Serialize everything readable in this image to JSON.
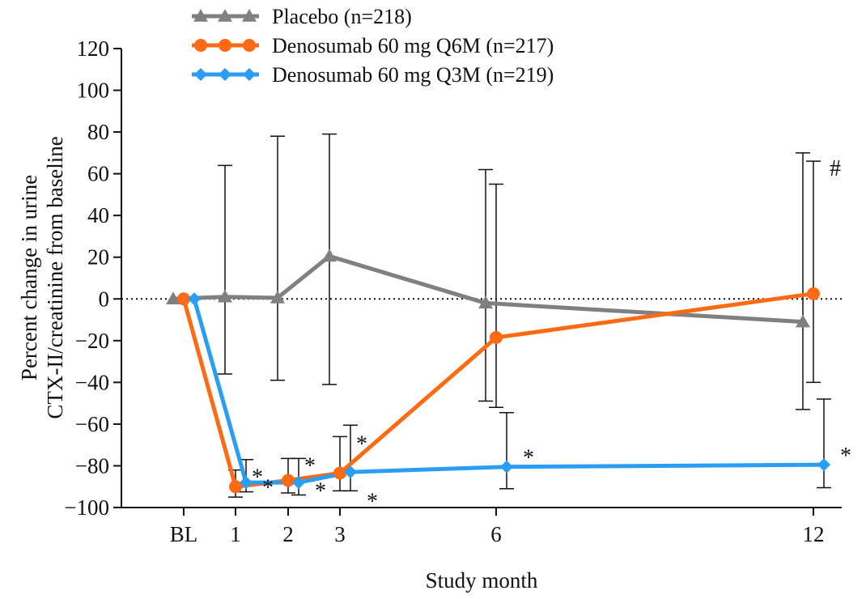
{
  "chart_data": {
    "type": "line",
    "title": "",
    "xlabel": "Study month",
    "ylabel_lines": [
      "Percent change in urine",
      "CTX-II/creatinine from baseline"
    ],
    "x_ticks": [
      {
        "value": 0,
        "label": "BL"
      },
      {
        "value": 1,
        "label": "1"
      },
      {
        "value": 2,
        "label": "2"
      },
      {
        "value": 3,
        "label": "3"
      },
      {
        "value": 6,
        "label": "6"
      },
      {
        "value": 12,
        "label": "12"
      }
    ],
    "ylim": [
      -100,
      120
    ],
    "y_ticks": [
      -100,
      -80,
      -60,
      -40,
      -20,
      0,
      20,
      40,
      60,
      80,
      100,
      120
    ],
    "zero_reference_line": "dotted",
    "legend_position": "top-left",
    "series": [
      {
        "name": "Placebo (n=218)",
        "color": "#808080",
        "marker": "triangle",
        "points": [
          {
            "x": 0,
            "y": 0
          },
          {
            "x": 1,
            "y": 1,
            "err_low": -36,
            "err_high": 64
          },
          {
            "x": 2,
            "y": 0.5,
            "err_low": -39,
            "err_high": 78
          },
          {
            "x": 3,
            "y": 20.5,
            "err_low": -41,
            "err_high": 79
          },
          {
            "x": 6,
            "y": -2,
            "err_low": -49,
            "err_high": 62
          },
          {
            "x": 12,
            "y": -11,
            "err_low": -53,
            "err_high": 70
          }
        ]
      },
      {
        "name": "Denosumab 60 mg Q6M (n=217)",
        "color": "#ff6a13",
        "marker": "circle",
        "points": [
          {
            "x": 0,
            "y": 0
          },
          {
            "x": 1,
            "y": -90,
            "err_low": -95,
            "err_high": -82,
            "mark": "*"
          },
          {
            "x": 2,
            "y": -87,
            "err_low": -93,
            "err_high": -76.5,
            "mark": "*"
          },
          {
            "x": 3,
            "y": -83.5,
            "err_low": -92,
            "err_high": -66,
            "mark": "*"
          },
          {
            "x": 6,
            "y": -18.5,
            "err_low": -52,
            "err_high": 55
          },
          {
            "x": 12,
            "y": 2.5,
            "err_low": -40,
            "err_high": 66,
            "mark": "#"
          }
        ]
      },
      {
        "name": "Denosumab 60 mg Q3M (n=219)",
        "color": "#2a9df4",
        "marker": "diamond",
        "points": [
          {
            "x": 0,
            "y": 0
          },
          {
            "x": 1,
            "y": -88,
            "err_low": -92.5,
            "err_high": -77,
            "mark": "*"
          },
          {
            "x": 2,
            "y": -88,
            "err_low": -94,
            "err_high": -76.5,
            "mark": "*"
          },
          {
            "x": 3,
            "y": -83,
            "err_low": -92,
            "err_high": -60.5,
            "mark": "*"
          },
          {
            "x": 6,
            "y": -80.5,
            "err_low": -91,
            "err_high": -54.5,
            "mark": "*"
          },
          {
            "x": 12,
            "y": -79.5,
            "err_low": -90.5,
            "err_high": -48,
            "mark": "*"
          }
        ]
      }
    ]
  }
}
